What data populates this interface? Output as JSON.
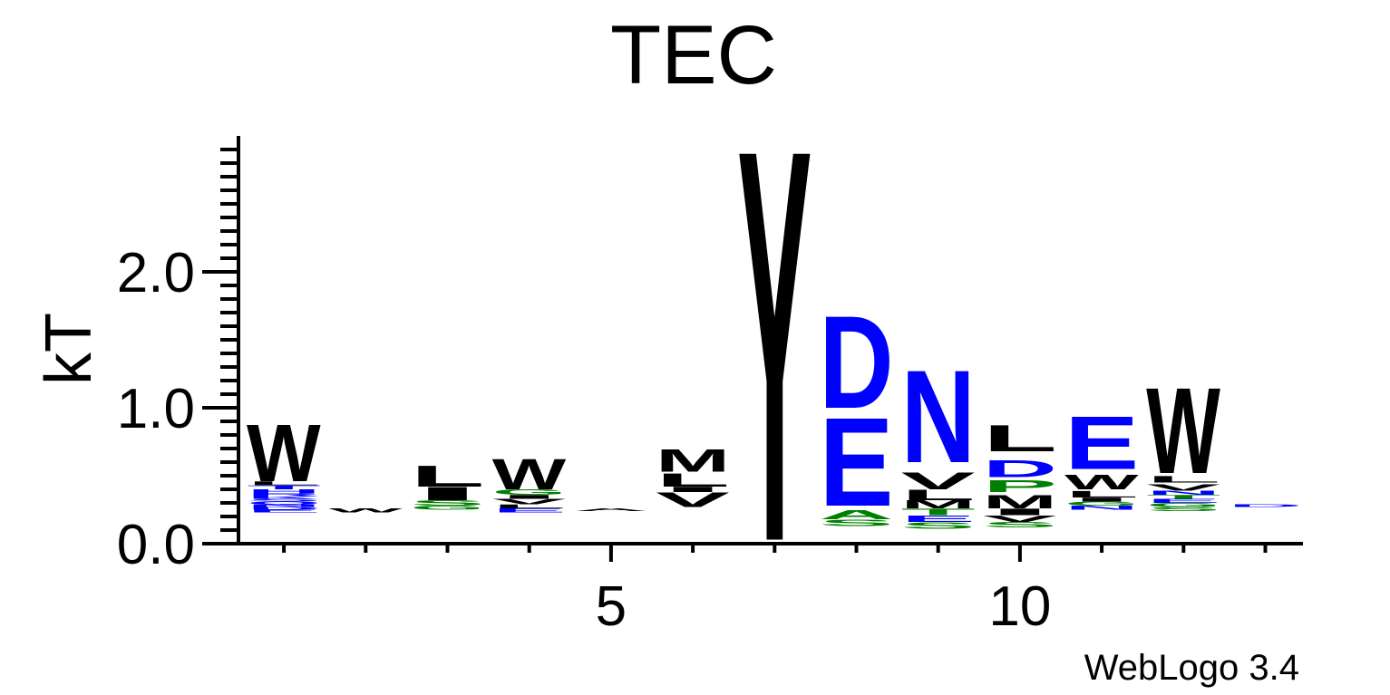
{
  "chart_data": {
    "type": "sequence-logo",
    "title": "TEC",
    "ylabel": "kT",
    "xlabel": "",
    "ylim": [
      0,
      2.9
    ],
    "yticks": [
      "0.0",
      "1.0",
      "2.0"
    ],
    "xticks": [
      "5",
      "10"
    ],
    "footer": "WebLogo 3.4",
    "colors": {
      "black": "#000000",
      "blue": "#0000ff",
      "green": "#008000"
    },
    "positions": [
      {
        "pos": 1,
        "stack": [
          {
            "letter": "E",
            "color": "#0000ff",
            "lo": 0.23,
            "hi": 0.25
          },
          {
            "letter": "D",
            "color": "#0000ff",
            "lo": 0.25,
            "hi": 0.27
          },
          {
            "letter": "N",
            "color": "#0000ff",
            "lo": 0.27,
            "hi": 0.29
          },
          {
            "letter": "Q",
            "color": "#0000ff",
            "lo": 0.29,
            "hi": 0.31
          },
          {
            "letter": "S",
            "color": "#0000ff",
            "lo": 0.31,
            "hi": 0.33
          },
          {
            "letter": "K",
            "color": "#0000ff",
            "lo": 0.33,
            "hi": 0.35
          },
          {
            "letter": "R",
            "color": "#0000ff",
            "lo": 0.35,
            "hi": 0.37
          },
          {
            "letter": "H",
            "color": "#0000ff",
            "lo": 0.37,
            "hi": 0.4
          },
          {
            "letter": "T",
            "color": "#0000ff",
            "lo": 0.4,
            "hi": 0.43
          },
          {
            "letter": "L",
            "color": "#000000",
            "lo": 0.43,
            "hi": 0.46
          },
          {
            "letter": "W",
            "color": "#000000",
            "lo": 0.46,
            "hi": 0.89
          }
        ]
      },
      {
        "pos": 2,
        "stack": [
          {
            "letter": "W",
            "color": "#000000",
            "lo": 0.23,
            "hi": 0.26
          }
        ]
      },
      {
        "pos": 3,
        "stack": [
          {
            "letter": "G",
            "color": "#008000",
            "lo": 0.25,
            "hi": 0.28
          },
          {
            "letter": "S",
            "color": "#008000",
            "lo": 0.28,
            "hi": 0.32
          },
          {
            "letter": "I",
            "color": "#000000",
            "lo": 0.32,
            "hi": 0.42
          },
          {
            "letter": "L",
            "color": "#000000",
            "lo": 0.42,
            "hi": 0.58
          }
        ]
      },
      {
        "pos": 4,
        "stack": [
          {
            "letter": "E",
            "color": "#0000ff",
            "lo": 0.23,
            "hi": 0.26
          },
          {
            "letter": "L",
            "color": "#000000",
            "lo": 0.26,
            "hi": 0.29
          },
          {
            "letter": "V",
            "color": "#000000",
            "lo": 0.29,
            "hi": 0.33
          },
          {
            "letter": "I",
            "color": "#000000",
            "lo": 0.33,
            "hi": 0.36
          },
          {
            "letter": "G",
            "color": "#008000",
            "lo": 0.36,
            "hi": 0.4
          },
          {
            "letter": "W",
            "color": "#000000",
            "lo": 0.4,
            "hi": 0.63
          }
        ]
      },
      {
        "pos": 5,
        "stack": [
          {
            "letter": "A",
            "color": "#000000",
            "lo": 0.24,
            "hi": 0.26
          }
        ]
      },
      {
        "pos": 6,
        "stack": [
          {
            "letter": "V",
            "color": "#000000",
            "lo": 0.27,
            "hi": 0.38
          },
          {
            "letter": "I",
            "color": "#000000",
            "lo": 0.38,
            "hi": 0.42
          },
          {
            "letter": "L",
            "color": "#000000",
            "lo": 0.42,
            "hi": 0.52
          },
          {
            "letter": "M",
            "color": "#000000",
            "lo": 0.53,
            "hi": 0.7
          }
        ]
      },
      {
        "pos": 7,
        "stack": [
          {
            "letter": "Y",
            "color": "#000000",
            "lo": 0.03,
            "hi": 3.0
          }
        ]
      },
      {
        "pos": 8,
        "stack": [
          {
            "letter": "S",
            "color": "#008000",
            "lo": 0.13,
            "hi": 0.18
          },
          {
            "letter": "A",
            "color": "#008000",
            "lo": 0.18,
            "hi": 0.25
          },
          {
            "letter": "E",
            "color": "#0000ff",
            "lo": 0.28,
            "hi": 0.95
          },
          {
            "letter": "D",
            "color": "#0000ff",
            "lo": 1.0,
            "hi": 1.7
          }
        ]
      },
      {
        "pos": 9,
        "stack": [
          {
            "letter": "S",
            "color": "#008000",
            "lo": 0.11,
            "hi": 0.16
          },
          {
            "letter": "E",
            "color": "#0000ff",
            "lo": 0.16,
            "hi": 0.21
          },
          {
            "letter": "T",
            "color": "#008000",
            "lo": 0.21,
            "hi": 0.26
          },
          {
            "letter": "M",
            "color": "#000000",
            "lo": 0.26,
            "hi": 0.32
          },
          {
            "letter": "L",
            "color": "#000000",
            "lo": 0.32,
            "hi": 0.4
          },
          {
            "letter": "V",
            "color": "#000000",
            "lo": 0.4,
            "hi": 0.53
          },
          {
            "letter": "N",
            "color": "#0000ff",
            "lo": 0.6,
            "hi": 1.3
          }
        ]
      },
      {
        "pos": 10,
        "stack": [
          {
            "letter": "S",
            "color": "#008000",
            "lo": 0.12,
            "hi": 0.16
          },
          {
            "letter": "V",
            "color": "#000000",
            "lo": 0.16,
            "hi": 0.21
          },
          {
            "letter": "I",
            "color": "#000000",
            "lo": 0.21,
            "hi": 0.26
          },
          {
            "letter": "M",
            "color": "#000000",
            "lo": 0.26,
            "hi": 0.36
          },
          {
            "letter": "P",
            "color": "#008000",
            "lo": 0.38,
            "hi": 0.47
          },
          {
            "letter": "D",
            "color": "#0000ff",
            "lo": 0.49,
            "hi": 0.62
          },
          {
            "letter": "L",
            "color": "#000000",
            "lo": 0.68,
            "hi": 0.88
          }
        ]
      },
      {
        "pos": 11,
        "stack": [
          {
            "letter": "N",
            "color": "#0000ff",
            "lo": 0.25,
            "hi": 0.28
          },
          {
            "letter": "G",
            "color": "#008000",
            "lo": 0.28,
            "hi": 0.31
          },
          {
            "letter": "I",
            "color": "#000000",
            "lo": 0.31,
            "hi": 0.34
          },
          {
            "letter": "L",
            "color": "#000000",
            "lo": 0.34,
            "hi": 0.39
          },
          {
            "letter": "W",
            "color": "#000000",
            "lo": 0.4,
            "hi": 0.51
          },
          {
            "letter": "E",
            "color": "#0000ff",
            "lo": 0.55,
            "hi": 0.95
          }
        ]
      },
      {
        "pos": 12,
        "stack": [
          {
            "letter": "S",
            "color": "#008000",
            "lo": 0.24,
            "hi": 0.27
          },
          {
            "letter": "G",
            "color": "#008000",
            "lo": 0.27,
            "hi": 0.3
          },
          {
            "letter": "E",
            "color": "#0000ff",
            "lo": 0.3,
            "hi": 0.33
          },
          {
            "letter": "T",
            "color": "#008000",
            "lo": 0.33,
            "hi": 0.36
          },
          {
            "letter": "N",
            "color": "#0000ff",
            "lo": 0.36,
            "hi": 0.39
          },
          {
            "letter": "V",
            "color": "#000000",
            "lo": 0.39,
            "hi": 0.44
          },
          {
            "letter": "L",
            "color": "#000000",
            "lo": 0.45,
            "hi": 0.5
          },
          {
            "letter": "W",
            "color": "#000000",
            "lo": 0.52,
            "hi": 1.17
          }
        ]
      },
      {
        "pos": 13,
        "stack": [
          {
            "letter": "D",
            "color": "#0000ff",
            "lo": 0.27,
            "hi": 0.29
          }
        ]
      }
    ]
  }
}
